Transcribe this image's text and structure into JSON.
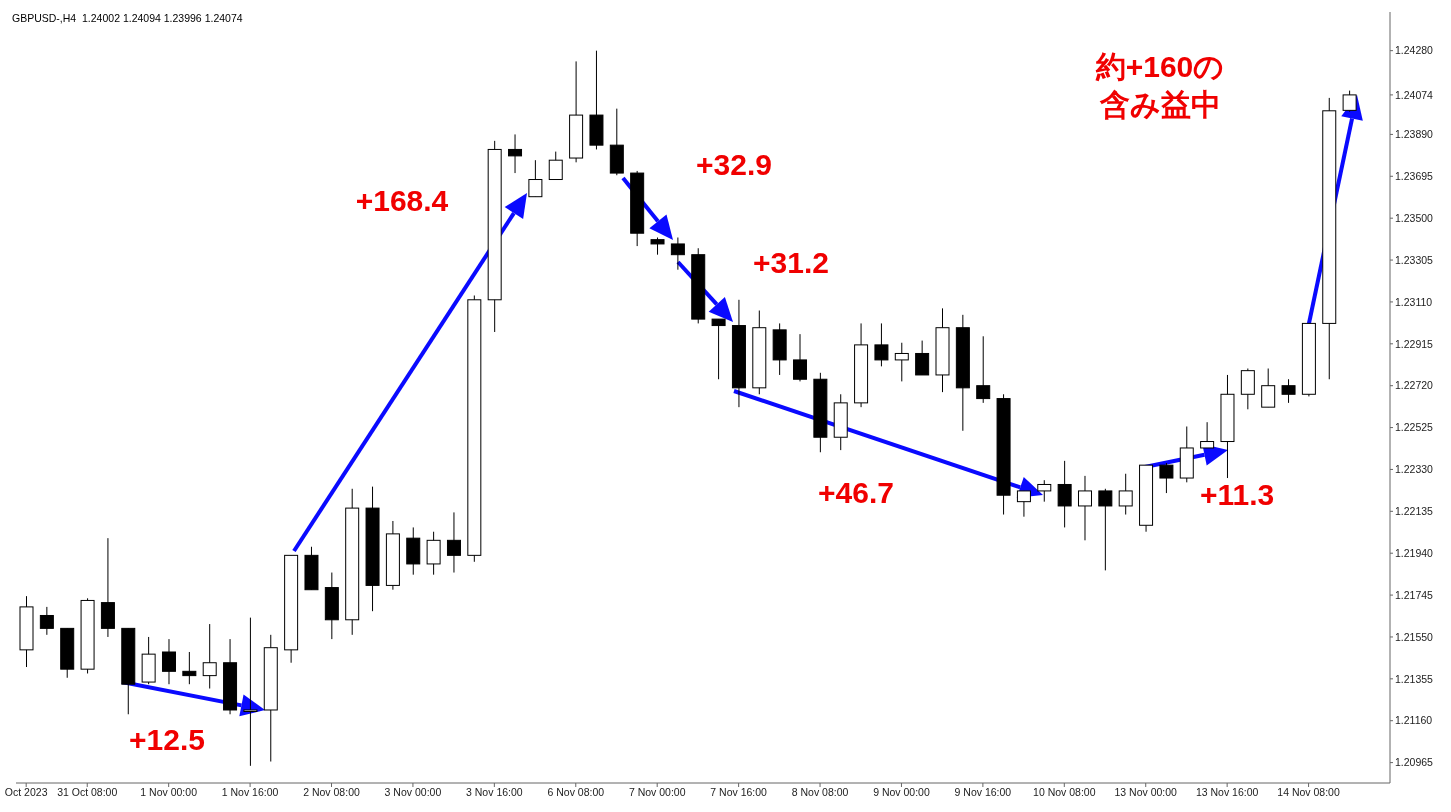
{
  "chart_data": {
    "type": "candlestick",
    "title": "GBPUSD-,H4  1.24002 1.24094 1.23996 1.24074",
    "categories": [
      "Oct 2023",
      null,
      null,
      "31 Oct 08:00",
      null,
      null,
      null,
      "1 Nov 00:00",
      null,
      null,
      null,
      "1 Nov 16:00",
      null,
      null,
      null,
      "2 Nov 08:00",
      null,
      null,
      null,
      "3 Nov 00:00",
      null,
      null,
      null,
      "3 Nov 16:00",
      null,
      null,
      null,
      "6 Nov 08:00",
      null,
      null,
      null,
      "7 Nov 00:00",
      null,
      null,
      null,
      "7 Nov 16:00",
      null,
      null,
      null,
      "8 Nov 08:00",
      null,
      null,
      null,
      "9 Nov 00:00",
      null,
      null,
      null,
      "9 Nov 16:00",
      null,
      null,
      null,
      "10 Nov 08:00",
      null,
      null,
      null,
      "13 Nov 00:00",
      null,
      null,
      null,
      "13 Nov 16:00",
      null,
      null,
      null,
      "14 Nov 08:00",
      null,
      null
    ],
    "ohlc": [
      [
        1.2149,
        1.2174,
        1.2141,
        1.2169
      ],
      [
        1.2165,
        1.2169,
        1.2156,
        1.2159
      ],
      [
        1.2159,
        1.2159,
        1.2136,
        1.214
      ],
      [
        1.214,
        1.2173,
        1.2138,
        1.2172
      ],
      [
        1.2171,
        1.2201,
        1.2155,
        1.2159
      ],
      [
        1.2159,
        1.2159,
        1.2119,
        1.2133
      ],
      [
        1.2134,
        1.2155,
        1.2133,
        1.2147
      ],
      [
        1.2148,
        1.2154,
        1.2133,
        1.2139
      ],
      [
        1.2139,
        1.2148,
        1.2133,
        1.2137
      ],
      [
        1.2137,
        1.2161,
        1.2131,
        1.2143
      ],
      [
        1.2143,
        1.2154,
        1.2119,
        1.2121
      ],
      [
        1.2121,
        1.2164,
        1.2095,
        1.2121
      ],
      [
        1.2121,
        1.2156,
        1.2097,
        1.215
      ],
      [
        1.2149,
        1.2193,
        1.2143,
        1.2193
      ],
      [
        1.2193,
        1.2197,
        1.2177,
        1.2177
      ],
      [
        1.2178,
        1.2185,
        1.2154,
        1.2163
      ],
      [
        1.2163,
        1.2224,
        1.2156,
        1.2215
      ],
      [
        1.2215,
        1.2225,
        1.2167,
        1.2179
      ],
      [
        1.2179,
        1.2209,
        1.2177,
        1.2203
      ],
      [
        1.2201,
        1.2206,
        1.2184,
        1.2189
      ],
      [
        1.2189,
        1.2204,
        1.2184,
        1.22
      ],
      [
        1.22,
        1.2213,
        1.2185,
        1.2193
      ],
      [
        1.2193,
        1.2314,
        1.219,
        1.2312
      ],
      [
        1.2312,
        1.2386,
        1.2297,
        1.2382
      ],
      [
        1.2382,
        1.2389,
        1.2371,
        1.2379
      ],
      [
        1.236,
        1.2377,
        1.236,
        1.2368
      ],
      [
        1.2368,
        1.2381,
        1.2368,
        1.2377
      ],
      [
        1.2378,
        1.2423,
        1.2376,
        1.2398
      ],
      [
        1.2398,
        1.2428,
        1.2382,
        1.2384
      ],
      [
        1.2384,
        1.2401,
        1.237,
        1.2371
      ],
      [
        1.2371,
        1.2372,
        1.2337,
        1.2343
      ],
      [
        1.234,
        1.2341,
        1.2333,
        1.2338
      ],
      [
        1.2338,
        1.2341,
        1.2326,
        1.2333
      ],
      [
        1.2333,
        1.2336,
        1.2301,
        1.2303
      ],
      [
        1.2303,
        1.2303,
        1.2275,
        1.23
      ],
      [
        1.23,
        1.2312,
        1.2262,
        1.2271
      ],
      [
        1.2271,
        1.2307,
        1.2268,
        1.2299
      ],
      [
        1.2298,
        1.2301,
        1.2277,
        1.2284
      ],
      [
        1.2284,
        1.2296,
        1.2274,
        1.2275
      ],
      [
        1.2275,
        1.2278,
        1.2241,
        1.2248
      ],
      [
        1.2248,
        1.2268,
        1.2242,
        1.2264
      ],
      [
        1.2264,
        1.2301,
        1.2262,
        1.2291
      ],
      [
        1.2291,
        1.2301,
        1.2281,
        1.2284
      ],
      [
        1.2284,
        1.2292,
        1.2274,
        1.2287
      ],
      [
        1.2287,
        1.2293,
        1.2277,
        1.2277
      ],
      [
        1.2277,
        1.2308,
        1.2269,
        1.2299
      ],
      [
        1.2299,
        1.2305,
        1.2251,
        1.2271
      ],
      [
        1.2272,
        1.2295,
        1.2264,
        1.2266
      ],
      [
        1.2266,
        1.2268,
        1.2212,
        1.2221
      ],
      [
        1.2218,
        1.2223,
        1.2211,
        1.2223
      ],
      [
        1.2223,
        1.2228,
        1.2218,
        1.2226
      ],
      [
        1.2226,
        1.2237,
        1.2206,
        1.2216
      ],
      [
        1.2216,
        1.223,
        1.22,
        1.2223
      ],
      [
        1.2223,
        1.2224,
        1.2186,
        1.2216
      ],
      [
        1.2216,
        1.2231,
        1.2212,
        1.2223
      ],
      [
        1.2207,
        1.2235,
        1.2204,
        1.2235
      ],
      [
        1.2235,
        1.2236,
        1.2222,
        1.2229
      ],
      [
        1.2229,
        1.2253,
        1.2227,
        1.2243
      ],
      [
        1.2243,
        1.2255,
        1.2243,
        1.2246
      ],
      [
        1.2246,
        1.2277,
        1.2229,
        1.2268
      ],
      [
        1.2268,
        1.228,
        1.2261,
        1.2279
      ],
      [
        1.2262,
        1.228,
        1.2262,
        1.2272
      ],
      [
        1.2272,
        1.2275,
        1.2264,
        1.2268
      ],
      [
        1.2268,
        1.2301,
        1.2267,
        1.2301
      ],
      [
        1.2301,
        1.2406,
        1.2275,
        1.24
      ],
      [
        1.24002,
        1.24094,
        1.23996,
        1.24074
      ]
    ],
    "color": "#000000",
    "ylim": [
      1.2087,
      1.2446
    ],
    "yticks": [
      {
        "value": 1.2428,
        "label": "1.24280"
      },
      1.24074,
      {
        "value": 1.2389,
        "label": "1.23890"
      },
      1.23695,
      {
        "value": 1.235,
        "label": "1.23500"
      },
      1.23305,
      {
        "value": 1.2311,
        "label": "1.23110"
      },
      1.22915,
      {
        "value": 1.2272,
        "label": "1.22720"
      },
      1.22525,
      {
        "value": 1.2233,
        "label": "1.22330"
      },
      1.22135,
      {
        "value": 1.2194,
        "label": "1.21940"
      },
      1.21745,
      {
        "value": 1.2155,
        "label": "1.21550"
      },
      1.21355,
      {
        "value": 1.2116,
        "label": "1.21160"
      },
      1.20965
    ],
    "annotations": [
      "+168.4",
      "+32.9",
      "+31.2",
      "+46.7",
      "+12.5",
      {
        "text": "+11.3",
        "x": "13 Nov 16:00",
        "y": 1.2246
      },
      "約+160の含み益中"
    ]
  }
}
